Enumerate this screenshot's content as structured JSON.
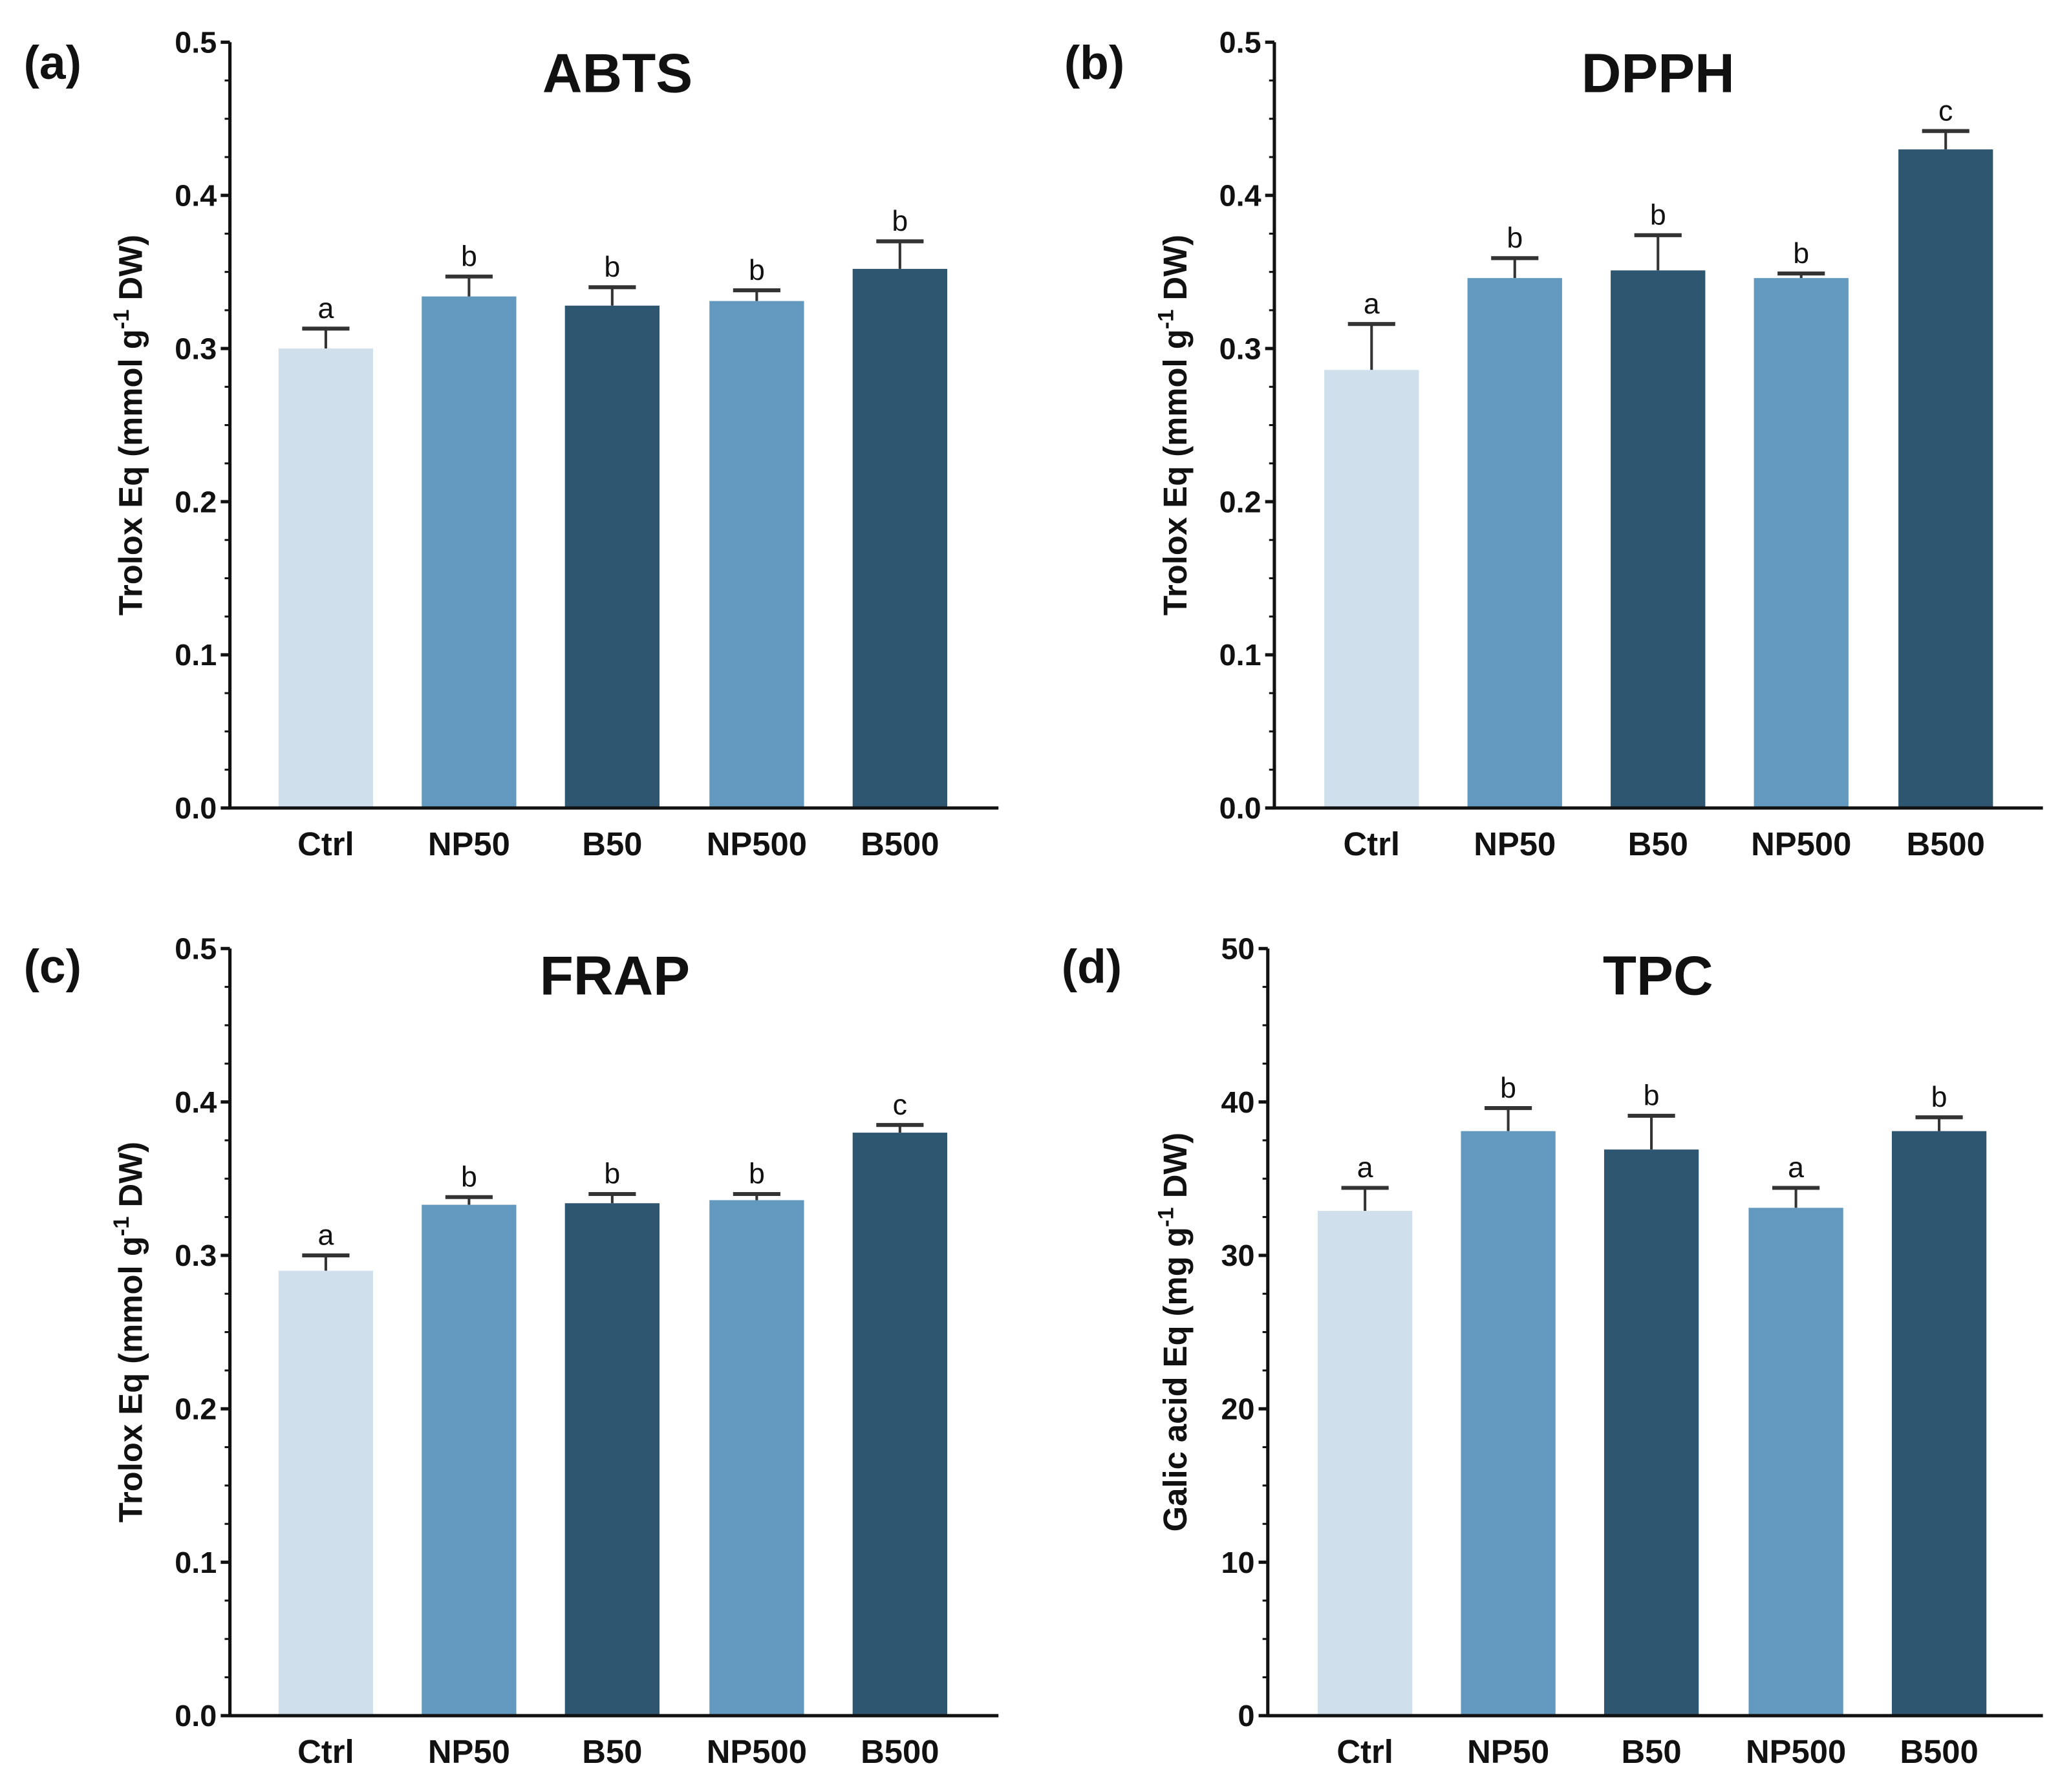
{
  "colors": {
    "Ctrl": "#cfe0ec",
    "NP50": "#6399bf",
    "B50": "#2f5670",
    "NP500": "#6399bf",
    "B500": "#2f5670",
    "error_bar": "#333333",
    "axis": "#111111"
  },
  "chart_data": [
    {
      "type": "bar",
      "panel_label": "(a)",
      "title": "ABTS",
      "xlabel": "",
      "ylabel": {
        "before": "Trolox Eq (mmol g",
        "sup": "-1",
        "after": " DW)"
      },
      "ylim": [
        0,
        0.5
      ],
      "yticks": [
        "0.0",
        "0.1",
        "0.2",
        "0.3",
        "0.4",
        "0.5"
      ],
      "grid": false,
      "categories": [
        "Ctrl",
        "NP50",
        "B50",
        "NP500",
        "B500"
      ],
      "values": [
        0.3,
        0.334,
        0.328,
        0.331,
        0.352
      ],
      "error": [
        0.013,
        0.013,
        0.012,
        0.007,
        0.018
      ],
      "letters": [
        "a",
        "b",
        "b",
        "b",
        "b"
      ]
    },
    {
      "type": "bar",
      "panel_label": "(b)",
      "title": "DPPH",
      "xlabel": "",
      "ylabel": {
        "before": "Trolox Eq (mmol g",
        "sup": "-1",
        "after": " DW)"
      },
      "ylim": [
        0,
        0.5
      ],
      "yticks": [
        "0.0",
        "0.1",
        "0.2",
        "0.3",
        "0.4",
        "0.5"
      ],
      "grid": false,
      "categories": [
        "Ctrl",
        "NP50",
        "B50",
        "NP500",
        "B500"
      ],
      "values": [
        0.286,
        0.346,
        0.351,
        0.346,
        0.43
      ],
      "error": [
        0.03,
        0.013,
        0.023,
        0.003,
        0.012
      ],
      "letters": [
        "a",
        "b",
        "b",
        "b",
        "c"
      ]
    },
    {
      "type": "bar",
      "panel_label": "(c)",
      "title": "FRAP",
      "xlabel": "",
      "ylabel": {
        "before": "Trolox Eq (mmol g",
        "sup": "-1",
        "after": " DW)"
      },
      "ylim": [
        0,
        0.5
      ],
      "yticks": [
        "0.0",
        "0.1",
        "0.2",
        "0.3",
        "0.4",
        "0.5"
      ],
      "grid": false,
      "categories": [
        "Ctrl",
        "NP50",
        "B50",
        "NP500",
        "B500"
      ],
      "values": [
        0.29,
        0.333,
        0.334,
        0.336,
        0.38
      ],
      "error": [
        0.01,
        0.005,
        0.006,
        0.004,
        0.005
      ],
      "letters": [
        "a",
        "b",
        "b",
        "b",
        "c"
      ]
    },
    {
      "type": "bar",
      "panel_label": "(d)",
      "title": "TPC",
      "xlabel": "",
      "ylabel": {
        "before": "Galic acid Eq (mg g",
        "sup": "-1",
        "after": " DW)"
      },
      "ylim": [
        0,
        50
      ],
      "yticks": [
        "0",
        "10",
        "20",
        "30",
        "40",
        "50"
      ],
      "grid": false,
      "categories": [
        "Ctrl",
        "NP50",
        "B50",
        "NP500",
        "B500"
      ],
      "values": [
        32.9,
        38.1,
        36.9,
        33.1,
        38.1
      ],
      "error": [
        1.5,
        1.5,
        2.2,
        1.3,
        0.9
      ],
      "letters": [
        "a",
        "b",
        "b",
        "a",
        "b"
      ]
    }
  ]
}
